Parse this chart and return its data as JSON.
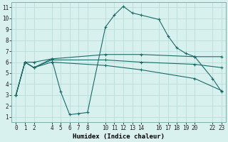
{
  "xlabel": "Humidex (Indice chaleur)",
  "bg_color": "#d8f0ee",
  "grid_color": "#b8deda",
  "line_color": "#1a6b68",
  "xlim": [
    -0.5,
    23.5
  ],
  "ylim": [
    0.5,
    11.5
  ],
  "xticks": [
    0,
    1,
    2,
    4,
    5,
    6,
    7,
    8,
    10,
    11,
    12,
    13,
    14,
    16,
    17,
    18,
    19,
    20,
    22,
    23
  ],
  "yticks": [
    1,
    2,
    3,
    4,
    5,
    6,
    7,
    8,
    9,
    10,
    11
  ],
  "lines": [
    {
      "x": [
        0,
        1,
        2,
        4,
        5,
        6,
        7,
        8,
        10,
        11,
        12,
        13,
        14,
        16,
        17,
        18,
        19,
        20,
        22,
        23
      ],
      "y": [
        3,
        6,
        6,
        6.3,
        3.3,
        1.2,
        1.3,
        1.4,
        9.2,
        10.3,
        11.1,
        10.5,
        10.3,
        9.9,
        8.4,
        7.3,
        6.8,
        6.5,
        4.5,
        3.3
      ]
    },
    {
      "x": [
        0,
        1,
        2,
        4,
        10,
        14,
        20,
        23
      ],
      "y": [
        3,
        6,
        5.5,
        6.3,
        6.7,
        6.7,
        6.5,
        6.5
      ]
    },
    {
      "x": [
        0,
        1,
        2,
        4,
        10,
        14,
        20,
        23
      ],
      "y": [
        3,
        6,
        5.5,
        6.2,
        6.2,
        6.0,
        5.8,
        5.5
      ]
    },
    {
      "x": [
        0,
        1,
        2,
        4,
        10,
        14,
        20,
        23
      ],
      "y": [
        3,
        6,
        5.5,
        6.0,
        5.7,
        5.3,
        4.5,
        3.4
      ]
    }
  ]
}
